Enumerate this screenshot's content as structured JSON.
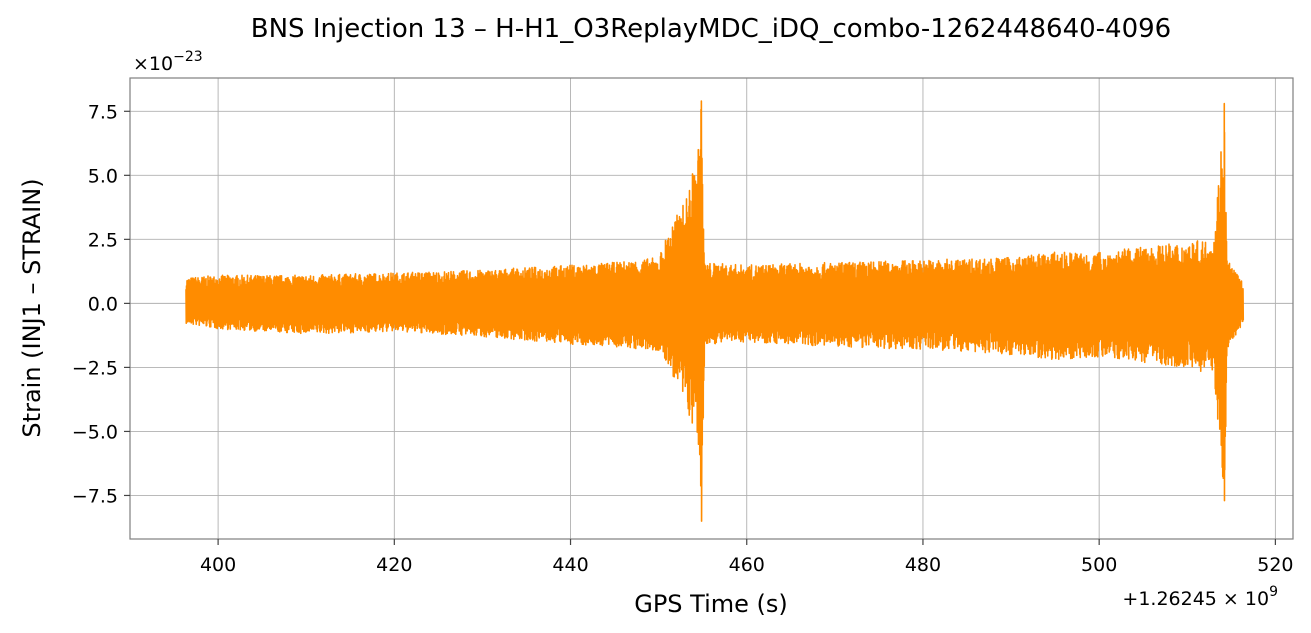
{
  "chart_data": {
    "type": "line",
    "title": "BNS Injection 13 – H-H1_O3ReplayMDC_iDQ_combo-1262448640-4096",
    "xlabel": "GPS Time (s)",
    "ylabel": "Strain (INJ1 – STRAIN)",
    "x_offset_label": "+1.26245 × 10",
    "x_offset_exponent": "9",
    "y_scale_label": "×10",
    "y_scale_exponent": "−23",
    "xlim": [
      390,
      522
    ],
    "ylim": [
      -9.2,
      8.8
    ],
    "x_ticks": [
      400,
      420,
      440,
      460,
      480,
      500,
      520
    ],
    "x_tick_labels": [
      "400",
      "420",
      "440",
      "460",
      "480",
      "500",
      "520"
    ],
    "y_ticks": [
      7.5,
      5.0,
      2.5,
      0.0,
      -2.5,
      -5.0,
      -7.5
    ],
    "y_tick_labels": [
      "7.5",
      "5.0",
      "2.5",
      "0.0",
      "−2.5",
      "−5.0",
      "−7.5"
    ],
    "grid": true,
    "series": [
      {
        "color": "#ff8c00",
        "x_range": [
          396.3,
          516.3
        ],
        "envelope": [
          {
            "x": 396.3,
            "max": 1.0,
            "min": -0.8
          },
          {
            "x": 400,
            "max": 1.1,
            "min": -1.0
          },
          {
            "x": 410,
            "max": 1.1,
            "min": -1.2
          },
          {
            "x": 420,
            "max": 1.2,
            "min": -1.1
          },
          {
            "x": 430,
            "max": 1.3,
            "min": -1.3
          },
          {
            "x": 440,
            "max": 1.5,
            "min": -1.6
          },
          {
            "x": 445,
            "max": 1.6,
            "min": -1.7
          },
          {
            "x": 450,
            "max": 1.8,
            "min": -1.9
          },
          {
            "x": 451.3,
            "max": 3.0,
            "min": -2.6
          },
          {
            "x": 453,
            "max": 4.0,
            "min": -4.0
          },
          {
            "x": 454.5,
            "max": 6.0,
            "min": -5.5
          },
          {
            "x": 454.85,
            "max": 7.9,
            "min": -8.5
          },
          {
            "x": 455.2,
            "max": 1.6,
            "min": -1.6
          },
          {
            "x": 460,
            "max": 1.5,
            "min": -1.5
          },
          {
            "x": 470,
            "max": 1.6,
            "min": -1.7
          },
          {
            "x": 480,
            "max": 1.7,
            "min": -1.8
          },
          {
            "x": 490,
            "max": 1.8,
            "min": -2.0
          },
          {
            "x": 495,
            "max": 2.0,
            "min": -2.2
          },
          {
            "x": 500,
            "max": 2.0,
            "min": -2.1
          },
          {
            "x": 505,
            "max": 2.2,
            "min": -2.3
          },
          {
            "x": 510,
            "max": 2.4,
            "min": -2.5
          },
          {
            "x": 513,
            "max": 2.5,
            "min": -2.8
          },
          {
            "x": 514.2,
            "max": 7.8,
            "min": -7.7
          },
          {
            "x": 514.5,
            "max": 1.8,
            "min": -1.8
          },
          {
            "x": 516.3,
            "max": 0.8,
            "min": -0.8
          }
        ]
      }
    ]
  }
}
